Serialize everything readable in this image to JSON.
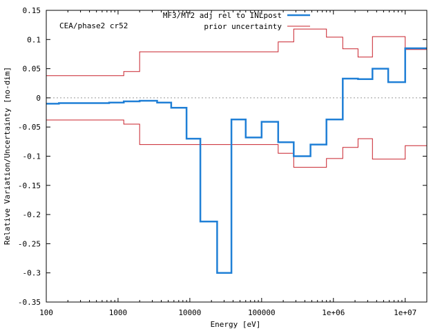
{
  "chart_data": {
    "type": "line",
    "step": true,
    "title": "",
    "annotation": "CEA/phase2 cr52",
    "xlabel": "Energy [eV]",
    "ylabel": "Relative Variation/Uncertainty [no-dim]",
    "x_scale": "log",
    "xlim": [
      100,
      20000000
    ],
    "ylim": [
      -0.35,
      0.15
    ],
    "x_ticks": [
      100,
      1000,
      10000,
      100000,
      1000000,
      10000000
    ],
    "x_tick_labels": [
      "100",
      "1000",
      "10000",
      "100000",
      "1e+06",
      "1e+07"
    ],
    "y_ticks": [
      -0.35,
      -0.3,
      -0.25,
      -0.2,
      -0.15,
      -0.1,
      -0.05,
      0,
      0.05,
      0.1,
      0.15
    ],
    "y_tick_labels": [
      "-0.35",
      "-0.3",
      "-0.25",
      "-0.2",
      "-0.15",
      "-0.1",
      "-0.05",
      "0",
      "0.05",
      "0.1",
      "0.15"
    ],
    "zero_line": true,
    "legend_position": "top-right",
    "series": [
      {
        "name": "MF3/MT2 adj rel to INLpost",
        "color": "#1f7fd6",
        "edges": [
          100,
          150,
          750,
          1200,
          2000,
          3500,
          5500,
          9000,
          14000,
          24000,
          38000,
          60000,
          100000,
          170000,
          280000,
          480000,
          800000,
          1350000,
          2200000,
          3500000,
          5800000,
          10000000,
          20000000
        ],
        "values": [
          -0.01,
          -0.009,
          -0.008,
          -0.006,
          -0.005,
          -0.008,
          -0.017,
          -0.07,
          -0.212,
          -0.3,
          -0.037,
          -0.068,
          -0.041,
          -0.076,
          -0.1,
          -0.08,
          -0.037,
          0.033,
          0.032,
          0.05,
          0.027,
          0.085
        ]
      },
      {
        "name": "prior uncertainty",
        "color": "#c8202a",
        "edges": [
          100,
          1200,
          2000,
          170000,
          280000,
          800000,
          1350000,
          2200000,
          3500000,
          10000000,
          20000000
        ],
        "upper": [
          0.038,
          0.045,
          0.079,
          0.096,
          0.118,
          0.104,
          0.084,
          0.07,
          0.105,
          0.083
        ],
        "lower": [
          -0.038,
          -0.045,
          -0.08,
          -0.095,
          -0.119,
          -0.104,
          -0.085,
          -0.07,
          -0.105,
          -0.082
        ]
      }
    ]
  }
}
